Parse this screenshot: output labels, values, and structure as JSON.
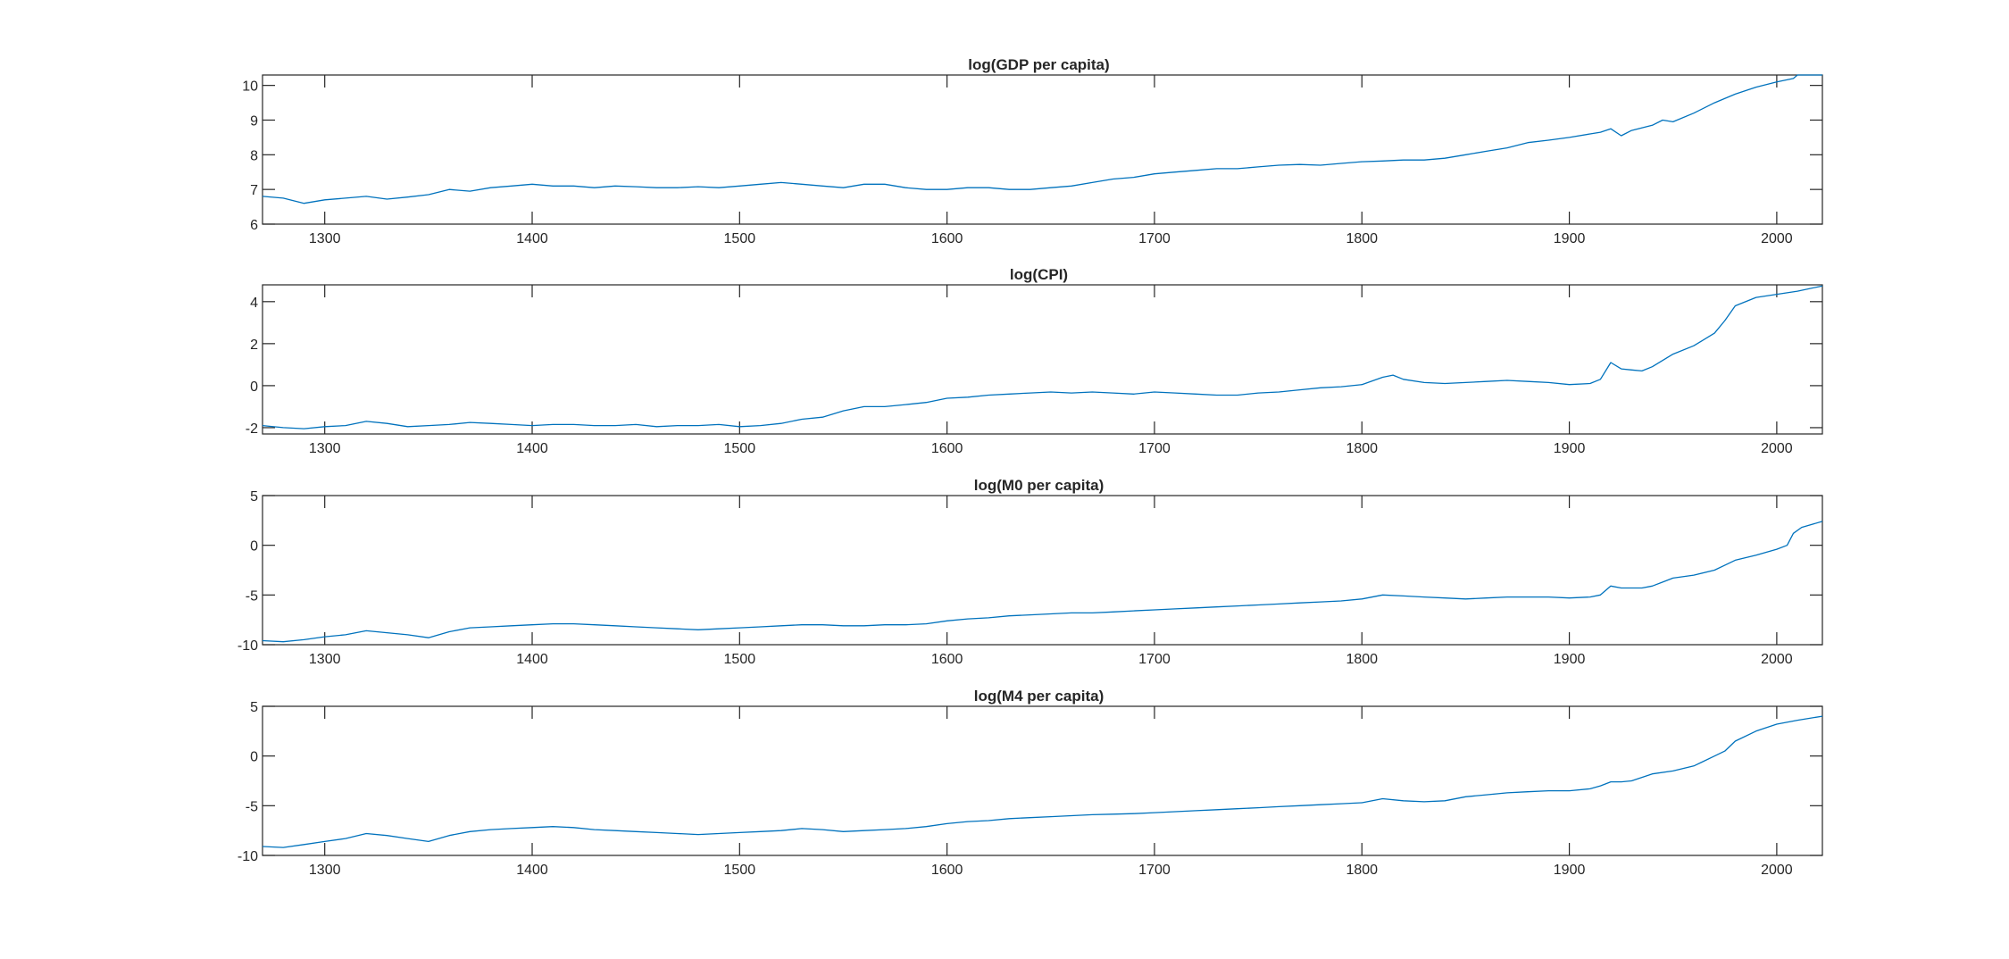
{
  "chart_data": [
    {
      "type": "line",
      "title": "log(GDP per capita)",
      "xlim": [
        1270,
        2022
      ],
      "ylim": [
        6,
        10.3
      ],
      "xticks": [
        1300,
        1400,
        1500,
        1600,
        1700,
        1800,
        1900,
        2000
      ],
      "yticks": [
        6,
        7,
        8,
        9,
        10
      ],
      "x": [
        1270,
        1280,
        1290,
        1300,
        1310,
        1320,
        1330,
        1340,
        1350,
        1360,
        1370,
        1380,
        1390,
        1400,
        1410,
        1420,
        1430,
        1440,
        1450,
        1460,
        1470,
        1480,
        1490,
        1500,
        1510,
        1520,
        1530,
        1540,
        1550,
        1560,
        1570,
        1580,
        1590,
        1600,
        1610,
        1620,
        1630,
        1640,
        1650,
        1660,
        1670,
        1680,
        1690,
        1700,
        1710,
        1720,
        1730,
        1740,
        1750,
        1760,
        1770,
        1780,
        1790,
        1800,
        1810,
        1820,
        1830,
        1840,
        1850,
        1860,
        1870,
        1880,
        1890,
        1900,
        1910,
        1915,
        1920,
        1925,
        1930,
        1940,
        1945,
        1950,
        1960,
        1970,
        1980,
        1990,
        2000,
        2008,
        2010,
        2015,
        2022
      ],
      "y": [
        6.8,
        6.75,
        6.6,
        6.7,
        6.75,
        6.8,
        6.72,
        6.78,
        6.85,
        7.0,
        6.95,
        7.05,
        7.1,
        7.15,
        7.1,
        7.1,
        7.05,
        7.1,
        7.08,
        7.05,
        7.05,
        7.08,
        7.05,
        7.1,
        7.15,
        7.2,
        7.15,
        7.1,
        7.05,
        7.15,
        7.15,
        7.05,
        7.0,
        7.0,
        7.05,
        7.05,
        7.0,
        7.0,
        7.05,
        7.1,
        7.2,
        7.3,
        7.35,
        7.45,
        7.5,
        7.55,
        7.6,
        7.6,
        7.65,
        7.7,
        7.72,
        7.7,
        7.75,
        7.8,
        7.82,
        7.85,
        7.85,
        7.9,
        8.0,
        8.1,
        8.2,
        8.35,
        8.42,
        8.5,
        8.6,
        8.65,
        8.75,
        8.55,
        8.7,
        8.85,
        9.0,
        8.95,
        9.2,
        9.5,
        9.75,
        9.95,
        10.1,
        10.2,
        10.3,
        10.3,
        10.3
      ]
    },
    {
      "type": "line",
      "title": "log(CPI)",
      "xlim": [
        1270,
        2022
      ],
      "ylim": [
        -2.3,
        4.8
      ],
      "xticks": [
        1300,
        1400,
        1500,
        1600,
        1700,
        1800,
        1900,
        2000
      ],
      "yticks": [
        -2,
        0,
        2,
        4
      ],
      "x": [
        1270,
        1280,
        1290,
        1300,
        1310,
        1320,
        1330,
        1340,
        1350,
        1360,
        1370,
        1380,
        1390,
        1400,
        1410,
        1420,
        1430,
        1440,
        1450,
        1460,
        1470,
        1480,
        1490,
        1500,
        1510,
        1520,
        1530,
        1540,
        1550,
        1560,
        1570,
        1580,
        1590,
        1600,
        1610,
        1620,
        1630,
        1640,
        1650,
        1660,
        1670,
        1680,
        1690,
        1700,
        1710,
        1720,
        1730,
        1740,
        1750,
        1760,
        1770,
        1780,
        1790,
        1800,
        1810,
        1815,
        1820,
        1830,
        1840,
        1850,
        1860,
        1870,
        1880,
        1890,
        1900,
        1910,
        1915,
        1920,
        1925,
        1930,
        1935,
        1940,
        1950,
        1960,
        1970,
        1975,
        1980,
        1990,
        2000,
        2010,
        2022
      ],
      "y": [
        -1.9,
        -2.0,
        -2.05,
        -1.95,
        -1.9,
        -1.7,
        -1.8,
        -1.95,
        -1.9,
        -1.85,
        -1.75,
        -1.8,
        -1.85,
        -1.9,
        -1.85,
        -1.85,
        -1.9,
        -1.9,
        -1.85,
        -1.95,
        -1.9,
        -1.9,
        -1.85,
        -1.95,
        -1.9,
        -1.8,
        -1.6,
        -1.5,
        -1.2,
        -1.0,
        -1.0,
        -0.9,
        -0.8,
        -0.6,
        -0.55,
        -0.45,
        -0.4,
        -0.35,
        -0.3,
        -0.35,
        -0.3,
        -0.35,
        -0.4,
        -0.3,
        -0.35,
        -0.4,
        -0.45,
        -0.45,
        -0.35,
        -0.3,
        -0.2,
        -0.1,
        -0.05,
        0.05,
        0.4,
        0.5,
        0.3,
        0.15,
        0.1,
        0.15,
        0.2,
        0.25,
        0.2,
        0.15,
        0.05,
        0.1,
        0.3,
        1.1,
        0.8,
        0.75,
        0.7,
        0.9,
        1.5,
        1.9,
        2.5,
        3.1,
        3.8,
        4.2,
        4.35,
        4.5,
        4.75
      ]
    },
    {
      "type": "line",
      "title": "log(M0 per capita)",
      "xlim": [
        1270,
        2022
      ],
      "ylim": [
        -10,
        5
      ],
      "xticks": [
        1300,
        1400,
        1500,
        1600,
        1700,
        1800,
        1900,
        2000
      ],
      "yticks": [
        -10,
        -5,
        0,
        5
      ],
      "x": [
        1270,
        1280,
        1290,
        1300,
        1310,
        1320,
        1330,
        1340,
        1350,
        1360,
        1370,
        1380,
        1390,
        1400,
        1410,
        1420,
        1430,
        1440,
        1450,
        1460,
        1470,
        1480,
        1490,
        1500,
        1510,
        1520,
        1530,
        1540,
        1550,
        1560,
        1570,
        1580,
        1590,
        1600,
        1610,
        1620,
        1630,
        1640,
        1650,
        1660,
        1670,
        1680,
        1690,
        1700,
        1710,
        1720,
        1730,
        1740,
        1750,
        1760,
        1770,
        1780,
        1790,
        1800,
        1810,
        1820,
        1830,
        1840,
        1850,
        1860,
        1870,
        1880,
        1890,
        1900,
        1910,
        1915,
        1920,
        1925,
        1930,
        1935,
        1940,
        1945,
        1950,
        1960,
        1970,
        1980,
        1990,
        2000,
        2005,
        2008,
        2012,
        2022
      ],
      "y": [
        -9.6,
        -9.7,
        -9.5,
        -9.2,
        -9.0,
        -8.6,
        -8.8,
        -9.0,
        -9.3,
        -8.7,
        -8.3,
        -8.2,
        -8.1,
        -8.0,
        -7.9,
        -7.9,
        -8.0,
        -8.1,
        -8.2,
        -8.3,
        -8.4,
        -8.5,
        -8.4,
        -8.3,
        -8.2,
        -8.1,
        -8.0,
        -8.0,
        -8.1,
        -8.1,
        -8.0,
        -8.0,
        -7.9,
        -7.6,
        -7.4,
        -7.3,
        -7.1,
        -7.0,
        -6.9,
        -6.8,
        -6.8,
        -6.7,
        -6.6,
        -6.5,
        -6.4,
        -6.3,
        -6.2,
        -6.1,
        -6.0,
        -5.9,
        -5.8,
        -5.7,
        -5.6,
        -5.4,
        -5.0,
        -5.1,
        -5.2,
        -5.3,
        -5.4,
        -5.3,
        -5.2,
        -5.2,
        -5.2,
        -5.3,
        -5.2,
        -5.0,
        -4.1,
        -4.3,
        -4.3,
        -4.3,
        -4.1,
        -3.7,
        -3.3,
        -3.0,
        -2.5,
        -1.5,
        -1.0,
        -0.4,
        0.0,
        1.2,
        1.8,
        2.4
      ]
    },
    {
      "type": "line",
      "title": "log(M4 per capita)",
      "xlim": [
        1270,
        2022
      ],
      "ylim": [
        -10,
        5
      ],
      "xticks": [
        1300,
        1400,
        1500,
        1600,
        1700,
        1800,
        1900,
        2000
      ],
      "yticks": [
        -10,
        -5,
        0,
        5
      ],
      "x": [
        1270,
        1280,
        1290,
        1300,
        1310,
        1320,
        1330,
        1340,
        1350,
        1360,
        1370,
        1380,
        1390,
        1400,
        1410,
        1420,
        1430,
        1440,
        1450,
        1460,
        1470,
        1480,
        1490,
        1500,
        1510,
        1520,
        1530,
        1540,
        1550,
        1560,
        1570,
        1580,
        1590,
        1600,
        1610,
        1620,
        1630,
        1640,
        1650,
        1660,
        1670,
        1680,
        1690,
        1700,
        1710,
        1720,
        1730,
        1740,
        1750,
        1760,
        1770,
        1780,
        1790,
        1800,
        1810,
        1820,
        1830,
        1840,
        1850,
        1860,
        1870,
        1880,
        1890,
        1900,
        1910,
        1915,
        1920,
        1925,
        1930,
        1940,
        1950,
        1960,
        1970,
        1975,
        1980,
        1990,
        2000,
        2010,
        2022
      ],
      "y": [
        -9.1,
        -9.2,
        -8.9,
        -8.6,
        -8.3,
        -7.8,
        -8.0,
        -8.3,
        -8.6,
        -8.0,
        -7.6,
        -7.4,
        -7.3,
        -7.2,
        -7.1,
        -7.2,
        -7.4,
        -7.5,
        -7.6,
        -7.7,
        -7.8,
        -7.9,
        -7.8,
        -7.7,
        -7.6,
        -7.5,
        -7.3,
        -7.4,
        -7.6,
        -7.5,
        -7.4,
        -7.3,
        -7.1,
        -6.8,
        -6.6,
        -6.5,
        -6.3,
        -6.2,
        -6.1,
        -6.0,
        -5.9,
        -5.85,
        -5.8,
        -5.7,
        -5.6,
        -5.5,
        -5.4,
        -5.3,
        -5.2,
        -5.1,
        -5.0,
        -4.9,
        -4.8,
        -4.7,
        -4.3,
        -4.5,
        -4.6,
        -4.5,
        -4.1,
        -3.9,
        -3.7,
        -3.6,
        -3.5,
        -3.5,
        -3.3,
        -3.0,
        -2.6,
        -2.6,
        -2.5,
        -1.8,
        -1.5,
        -1.0,
        0.0,
        0.5,
        1.5,
        2.5,
        3.2,
        3.6,
        4.0
      ]
    }
  ]
}
